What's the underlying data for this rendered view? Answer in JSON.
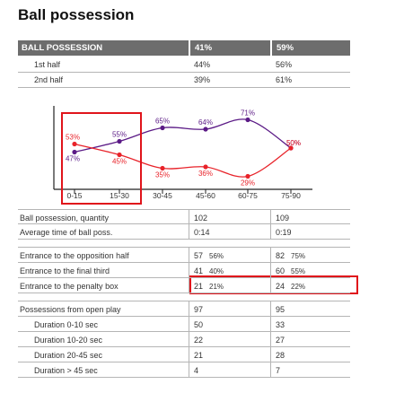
{
  "title": "Ball possession",
  "header": {
    "label": "BALL POSSESSION",
    "team_a": "41%",
    "team_b": "59%"
  },
  "top_rows": [
    {
      "label": "1st half",
      "a": "44%",
      "b": "56%"
    },
    {
      "label": "2nd half",
      "a": "39%",
      "b": "61%"
    }
  ],
  "chart_data": {
    "type": "line",
    "categories": [
      "0-15",
      "15-30",
      "30-45",
      "45-60",
      "60-75",
      "75-90"
    ],
    "series": [
      {
        "color": "#5b1a86",
        "values": [
          47,
          55,
          65,
          64,
          71,
          50
        ],
        "labels": [
          "47%",
          "55%",
          "65%",
          "64%",
          "71%",
          "50%"
        ]
      },
      {
        "color": "#e8232a",
        "values": [
          53,
          45,
          35,
          36,
          29,
          50
        ],
        "labels": [
          "53%",
          "45%",
          "35%",
          "36%",
          "29%",
          "50%"
        ]
      }
    ],
    "ylim": [
      20,
      80
    ],
    "grid": false,
    "highlight_categories": [
      "0-15",
      "15-30"
    ]
  },
  "stats_rows": [
    {
      "label": "Ball possession, quantity",
      "a": "102",
      "b": "109"
    },
    {
      "label": "Average time of ball poss.",
      "a": "0:14",
      "b": "0:19"
    },
    {
      "label": "Entrance to the opposition half",
      "a": "57",
      "a_pct": "56%",
      "b": "82",
      "b_pct": "75%"
    },
    {
      "label": "Entrance to the final third",
      "a": "41",
      "a_pct": "40%",
      "b": "60",
      "b_pct": "55%"
    },
    {
      "label": "Entrance to the penalty box",
      "a": "21",
      "a_pct": "21%",
      "b": "24",
      "b_pct": "22%"
    },
    {
      "label": "Possessions from open play",
      "a": "97",
      "b": "95"
    },
    {
      "label": "Duration  0-10 sec",
      "a": "50",
      "b": "33"
    },
    {
      "label": "Duration  10-20 sec",
      "a": "22",
      "b": "27"
    },
    {
      "label": "Duration  20-45 sec",
      "a": "21",
      "b": "28"
    },
    {
      "label": "Duration  > 45 sec",
      "a": "4",
      "b": "7"
    }
  ],
  "colors": {
    "highlight": "#e0141b",
    "header_bg": "#6d6d6d"
  }
}
